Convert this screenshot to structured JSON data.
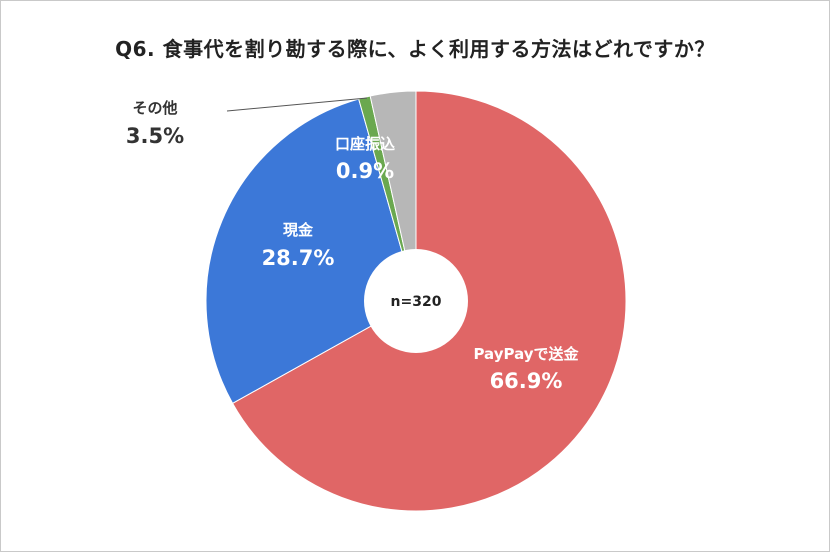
{
  "title": "Q6. 食事代を割り勘する際に、よく利用する方法はどれですか？",
  "sample_size": "n=320",
  "chart_data": {
    "type": "pie",
    "donut": true,
    "center_label": "n=320",
    "slices": [
      {
        "label": "PayPayで送金",
        "value": 66.9,
        "display": "66.9%",
        "color": "#e06666",
        "label_color": "#ffffff"
      },
      {
        "label": "現金",
        "value": 28.7,
        "display": "28.7%",
        "color": "#3c78d8",
        "label_color": "#ffffff"
      },
      {
        "label": "口座振込",
        "value": 0.9,
        "display": "0.9%",
        "color": "#6aa84f",
        "label_color": "#ffffff"
      },
      {
        "label": "その他",
        "value": 3.5,
        "display": "3.5%",
        "color": "#b7b7b7",
        "label_color": "#333333"
      }
    ],
    "start": "12 o'clock",
    "direction": "clockwise"
  }
}
